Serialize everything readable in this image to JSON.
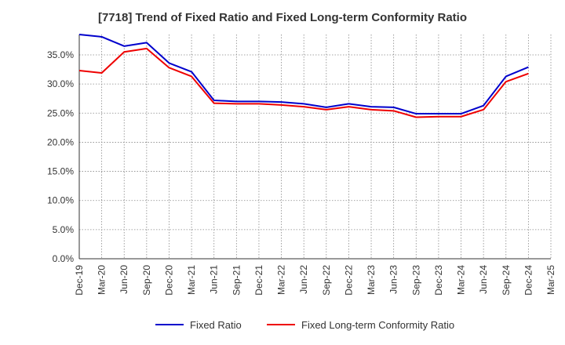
{
  "chart_data": {
    "type": "line",
    "title": "[7718]  Trend of Fixed Ratio and Fixed Long-term Conformity Ratio",
    "xlabel": "",
    "ylabel": "",
    "x_ticks": [
      "Dec-19",
      "Mar-20",
      "Jun-20",
      "Sep-20",
      "Dec-20",
      "Mar-21",
      "Jun-21",
      "Sep-21",
      "Dec-21",
      "Mar-22",
      "Jun-22",
      "Sep-22",
      "Dec-22",
      "Mar-23",
      "Jun-23",
      "Sep-23",
      "Dec-23",
      "Mar-24",
      "Jun-24",
      "Sep-24",
      "Dec-24",
      "Mar-25"
    ],
    "y_ticks": [
      "0.0%",
      "5.0%",
      "10.0%",
      "15.0%",
      "20.0%",
      "25.0%",
      "30.0%",
      "35.0%"
    ],
    "ylim": [
      0,
      38.5
    ],
    "grid": true,
    "legend_position": "bottom",
    "x": [
      "Dec-19",
      "Mar-20",
      "Jun-20",
      "Sep-20",
      "Dec-20",
      "Mar-21",
      "Jun-21",
      "Sep-21",
      "Dec-21",
      "Mar-22",
      "Jun-22",
      "Sep-22",
      "Dec-22",
      "Mar-23",
      "Jun-23",
      "Sep-23",
      "Dec-23",
      "Mar-24",
      "Jun-24",
      "Sep-24",
      "Dec-24"
    ],
    "series": [
      {
        "name": "Fixed Ratio",
        "color": "#0000cc",
        "values": [
          38.5,
          38.1,
          36.5,
          37.1,
          33.6,
          32.1,
          27.2,
          27.0,
          27.0,
          26.9,
          26.6,
          26.0,
          26.6,
          26.1,
          26.0,
          24.9,
          24.9,
          24.9,
          26.3,
          31.3,
          32.9
        ]
      },
      {
        "name": "Fixed Long-term Conformity Ratio",
        "color": "#ee0000",
        "values": [
          32.3,
          31.9,
          35.5,
          36.1,
          32.8,
          31.3,
          26.7,
          26.6,
          26.6,
          26.4,
          26.1,
          25.6,
          26.1,
          25.6,
          25.4,
          24.3,
          24.4,
          24.4,
          25.6,
          30.4,
          31.8
        ]
      }
    ]
  }
}
